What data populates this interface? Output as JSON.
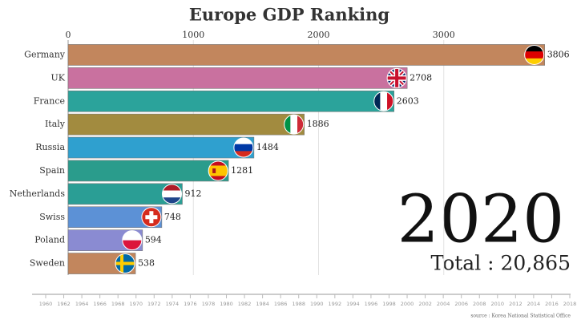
{
  "chart_data": {
    "type": "bar",
    "orientation": "horizontal",
    "title": "Europe GDP Ranking",
    "categories": [
      "Germany",
      "UK",
      "France",
      "Italy",
      "Russia",
      "Spain",
      "Netherlands",
      "Swiss",
      "Poland",
      "Sweden"
    ],
    "values": [
      3806,
      2708,
      2603,
      1886,
      1484,
      1281,
      912,
      748,
      594,
      538
    ],
    "colors": [
      "#c2865d",
      "#c9719f",
      "#2ba39b",
      "#a28b3f",
      "#2fa0cf",
      "#2a9c8c",
      "#2a9e95",
      "#5c91d6",
      "#8a8bd2",
      "#c2865d"
    ],
    "xlim": [
      0,
      4000
    ],
    "xticks": [
      0,
      1000,
      2000,
      3000
    ],
    "grid": true,
    "year": "2020",
    "total_label": "Total : 20,865",
    "timeline": [
      1960,
      1962,
      1964,
      1966,
      1968,
      1970,
      1972,
      1974,
      1976,
      1978,
      1980,
      1982,
      1984,
      1986,
      1988,
      1990,
      1992,
      1994,
      1996,
      1998,
      2000,
      2002,
      2004,
      2006,
      2008,
      2010,
      2012,
      2014,
      2016,
      2018
    ],
    "source": "source : Korea National Statistical Office"
  }
}
